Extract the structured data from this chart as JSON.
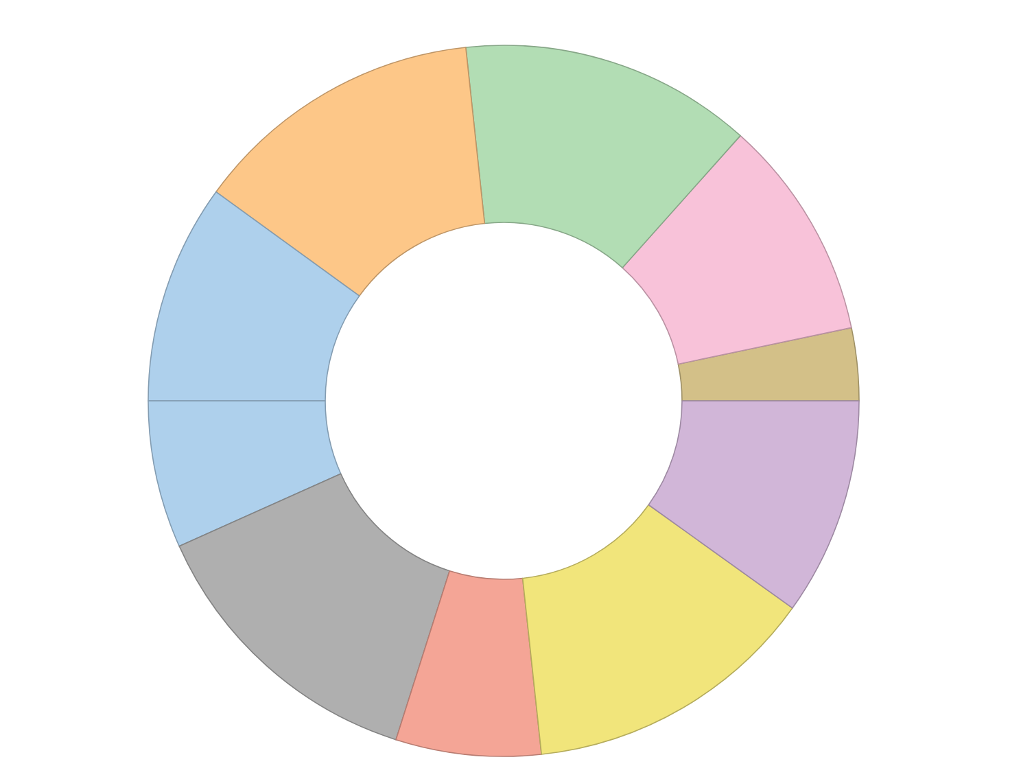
{
  "chart_data": {
    "type": "donut",
    "categories": [
      null,
      null,
      null,
      null,
      null,
      null,
      null,
      null,
      null,
      null
    ],
    "values": [
      3.3,
      10.1,
      13.3,
      13.3,
      10,
      6.7,
      13.4,
      6.6,
      13.4,
      9.9
    ],
    "colors": [
      "#d3c088",
      "#f8c2d9",
      "#b2ddb4",
      "#fdc788",
      "#aed0ec",
      "#aed0ec",
      "#afafaf",
      "#f4a596",
      "#f1e57b",
      "#d1b6d8"
    ]
  }
}
